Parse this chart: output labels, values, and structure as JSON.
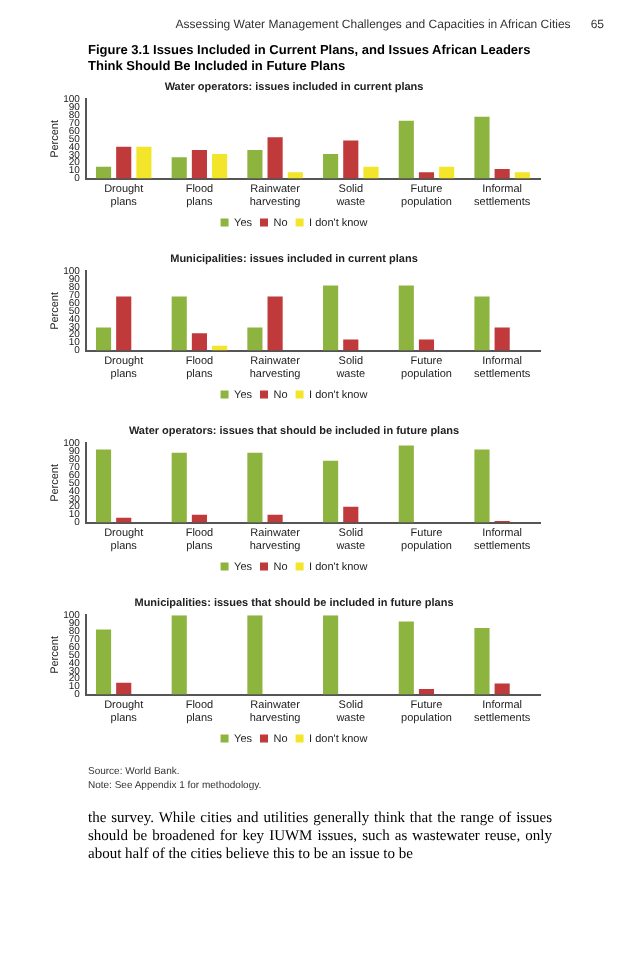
{
  "chart_data": [
    {
      "type": "bar",
      "title": "Water operators: issues included in current plans",
      "ylabel": "Percent",
      "categories": [
        "Drought plans",
        "Flood plans",
        "Rainwater harvesting",
        "Solid waste",
        "Future population",
        "Informal settlements"
      ],
      "series": [
        {
          "name": "Yes",
          "color": "#8db43e",
          "values": [
            15,
            27,
            36,
            31,
            73,
            78
          ]
        },
        {
          "name": "No",
          "color": "#c0393b",
          "values": [
            40,
            36,
            52,
            48,
            8,
            12
          ]
        },
        {
          "name": "I don't know",
          "color": "#f2e52a",
          "values": [
            40,
            31,
            8,
            15,
            15,
            8
          ]
        }
      ],
      "ylim": [
        0,
        100
      ],
      "yticks": [
        0,
        10,
        20,
        30,
        40,
        50,
        60,
        70,
        80,
        90,
        100
      ],
      "legend": "bottom",
      "grid": false,
      "annotations": [
        "Assessing Water Management Challenges and Capacities in African Cities",
        "65",
        "Figure 3.1    Issues Included in Current Plans, and Issues African Leaders Think Should Be Included in Future Plans"
      ]
    },
    {
      "type": "bar",
      "title": "Municipalities: issues included in current plans",
      "ylabel": "Percent",
      "categories": [
        "Drought plans",
        "Flood plans",
        "Rainwater harvesting",
        "Solid waste",
        "Future population",
        "Informal settlements"
      ],
      "series": [
        {
          "name": "Yes",
          "color": "#8db43e",
          "values": [
            29,
            68,
            29,
            82,
            82,
            68
          ]
        },
        {
          "name": "No",
          "color": "#c0393b",
          "values": [
            68,
            22,
            68,
            14,
            14,
            29
          ]
        },
        {
          "name": "I don't know",
          "color": "#f2e52a",
          "values": [
            0,
            6,
            0,
            0,
            0,
            0
          ]
        }
      ],
      "ylim": [
        0,
        100
      ],
      "yticks": [
        0,
        10,
        20,
        30,
        40,
        50,
        60,
        70,
        80,
        90,
        100
      ],
      "legend": "bottom",
      "grid": false
    },
    {
      "type": "bar",
      "title": "Water operators: issues that should be included in future plans",
      "ylabel": "Percent",
      "categories": [
        "Drought plans",
        "Flood plans",
        "Rainwater harvesting",
        "Solid waste",
        "Future population",
        "Informal settlements"
      ],
      "series": [
        {
          "name": "Yes",
          "color": "#8db43e",
          "values": [
            92,
            88,
            88,
            78,
            97,
            92
          ]
        },
        {
          "name": "No",
          "color": "#c0393b",
          "values": [
            6,
            10,
            10,
            20,
            0,
            2
          ]
        },
        {
          "name": "I don't know",
          "color": "#f2e52a",
          "values": [
            0,
            0,
            0,
            0,
            0,
            0
          ]
        }
      ],
      "ylim": [
        0,
        100
      ],
      "yticks": [
        0,
        10,
        20,
        30,
        40,
        50,
        60,
        70,
        80,
        90,
        100
      ],
      "legend": "bottom",
      "grid": false
    },
    {
      "type": "bar",
      "title": "Municipalities: issues that should be included in future plans",
      "ylabel": "Percent",
      "categories": [
        "Drought plans",
        "Flood plans",
        "Rainwater harvesting",
        "Solid waste",
        "Future population",
        "Informal settlements"
      ],
      "series": [
        {
          "name": "Yes",
          "color": "#8db43e",
          "values": [
            82,
            100,
            100,
            100,
            92,
            84
          ]
        },
        {
          "name": "No",
          "color": "#c0393b",
          "values": [
            15,
            0,
            0,
            0,
            7,
            14
          ]
        },
        {
          "name": "I don't know",
          "color": "#f2e52a",
          "values": [
            0,
            0,
            0,
            0,
            0,
            0
          ]
        }
      ],
      "ylim": [
        0,
        100
      ],
      "yticks": [
        0,
        10,
        20,
        30,
        40,
        50,
        60,
        70,
        80,
        90,
        100
      ],
      "legend": "bottom",
      "grid": false,
      "annotations": [
        "Source: World Bank.",
        "Note: See Appendix 1 for methodology.",
        "the survey. While cities and utilities generally think that the range of issues should be broadened for key IUWM issues, such as wastewater reuse, only about half of the cities believe this to be an issue to be"
      ]
    }
  ]
}
